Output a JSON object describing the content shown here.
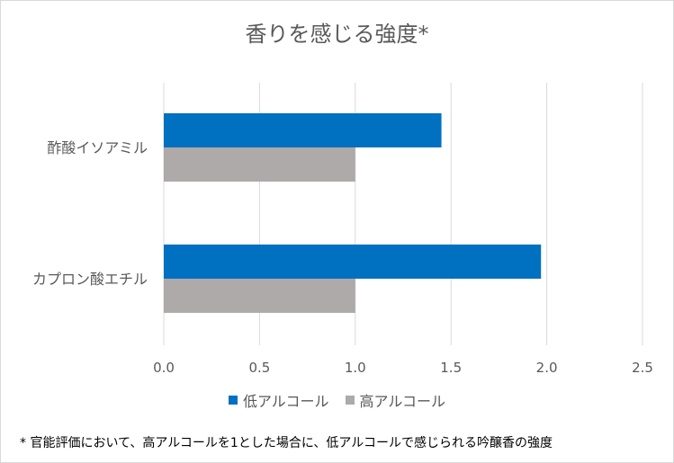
{
  "chart_data": {
    "type": "bar",
    "orientation": "horizontal",
    "title": "香りを感じる強度*",
    "categories": [
      "酢酸イソアミル",
      "カプロン酸エチル"
    ],
    "series": [
      {
        "name": "低アルコール",
        "color": "#0070c0",
        "values": [
          1.45,
          1.97
        ]
      },
      {
        "name": "高アルコール",
        "color": "#aeaaaa",
        "values": [
          1.0,
          1.0
        ]
      }
    ],
    "xlim": [
      0,
      2.5
    ],
    "xticks": [
      "0.0",
      "0.5",
      "1.0",
      "1.5",
      "2.0",
      "2.5"
    ],
    "grid": true,
    "legend_position": "bottom"
  },
  "footnote": "* 官能評価において、高アルコールを1とした場合に、低アルコールで感じられる吟醸香の強度"
}
